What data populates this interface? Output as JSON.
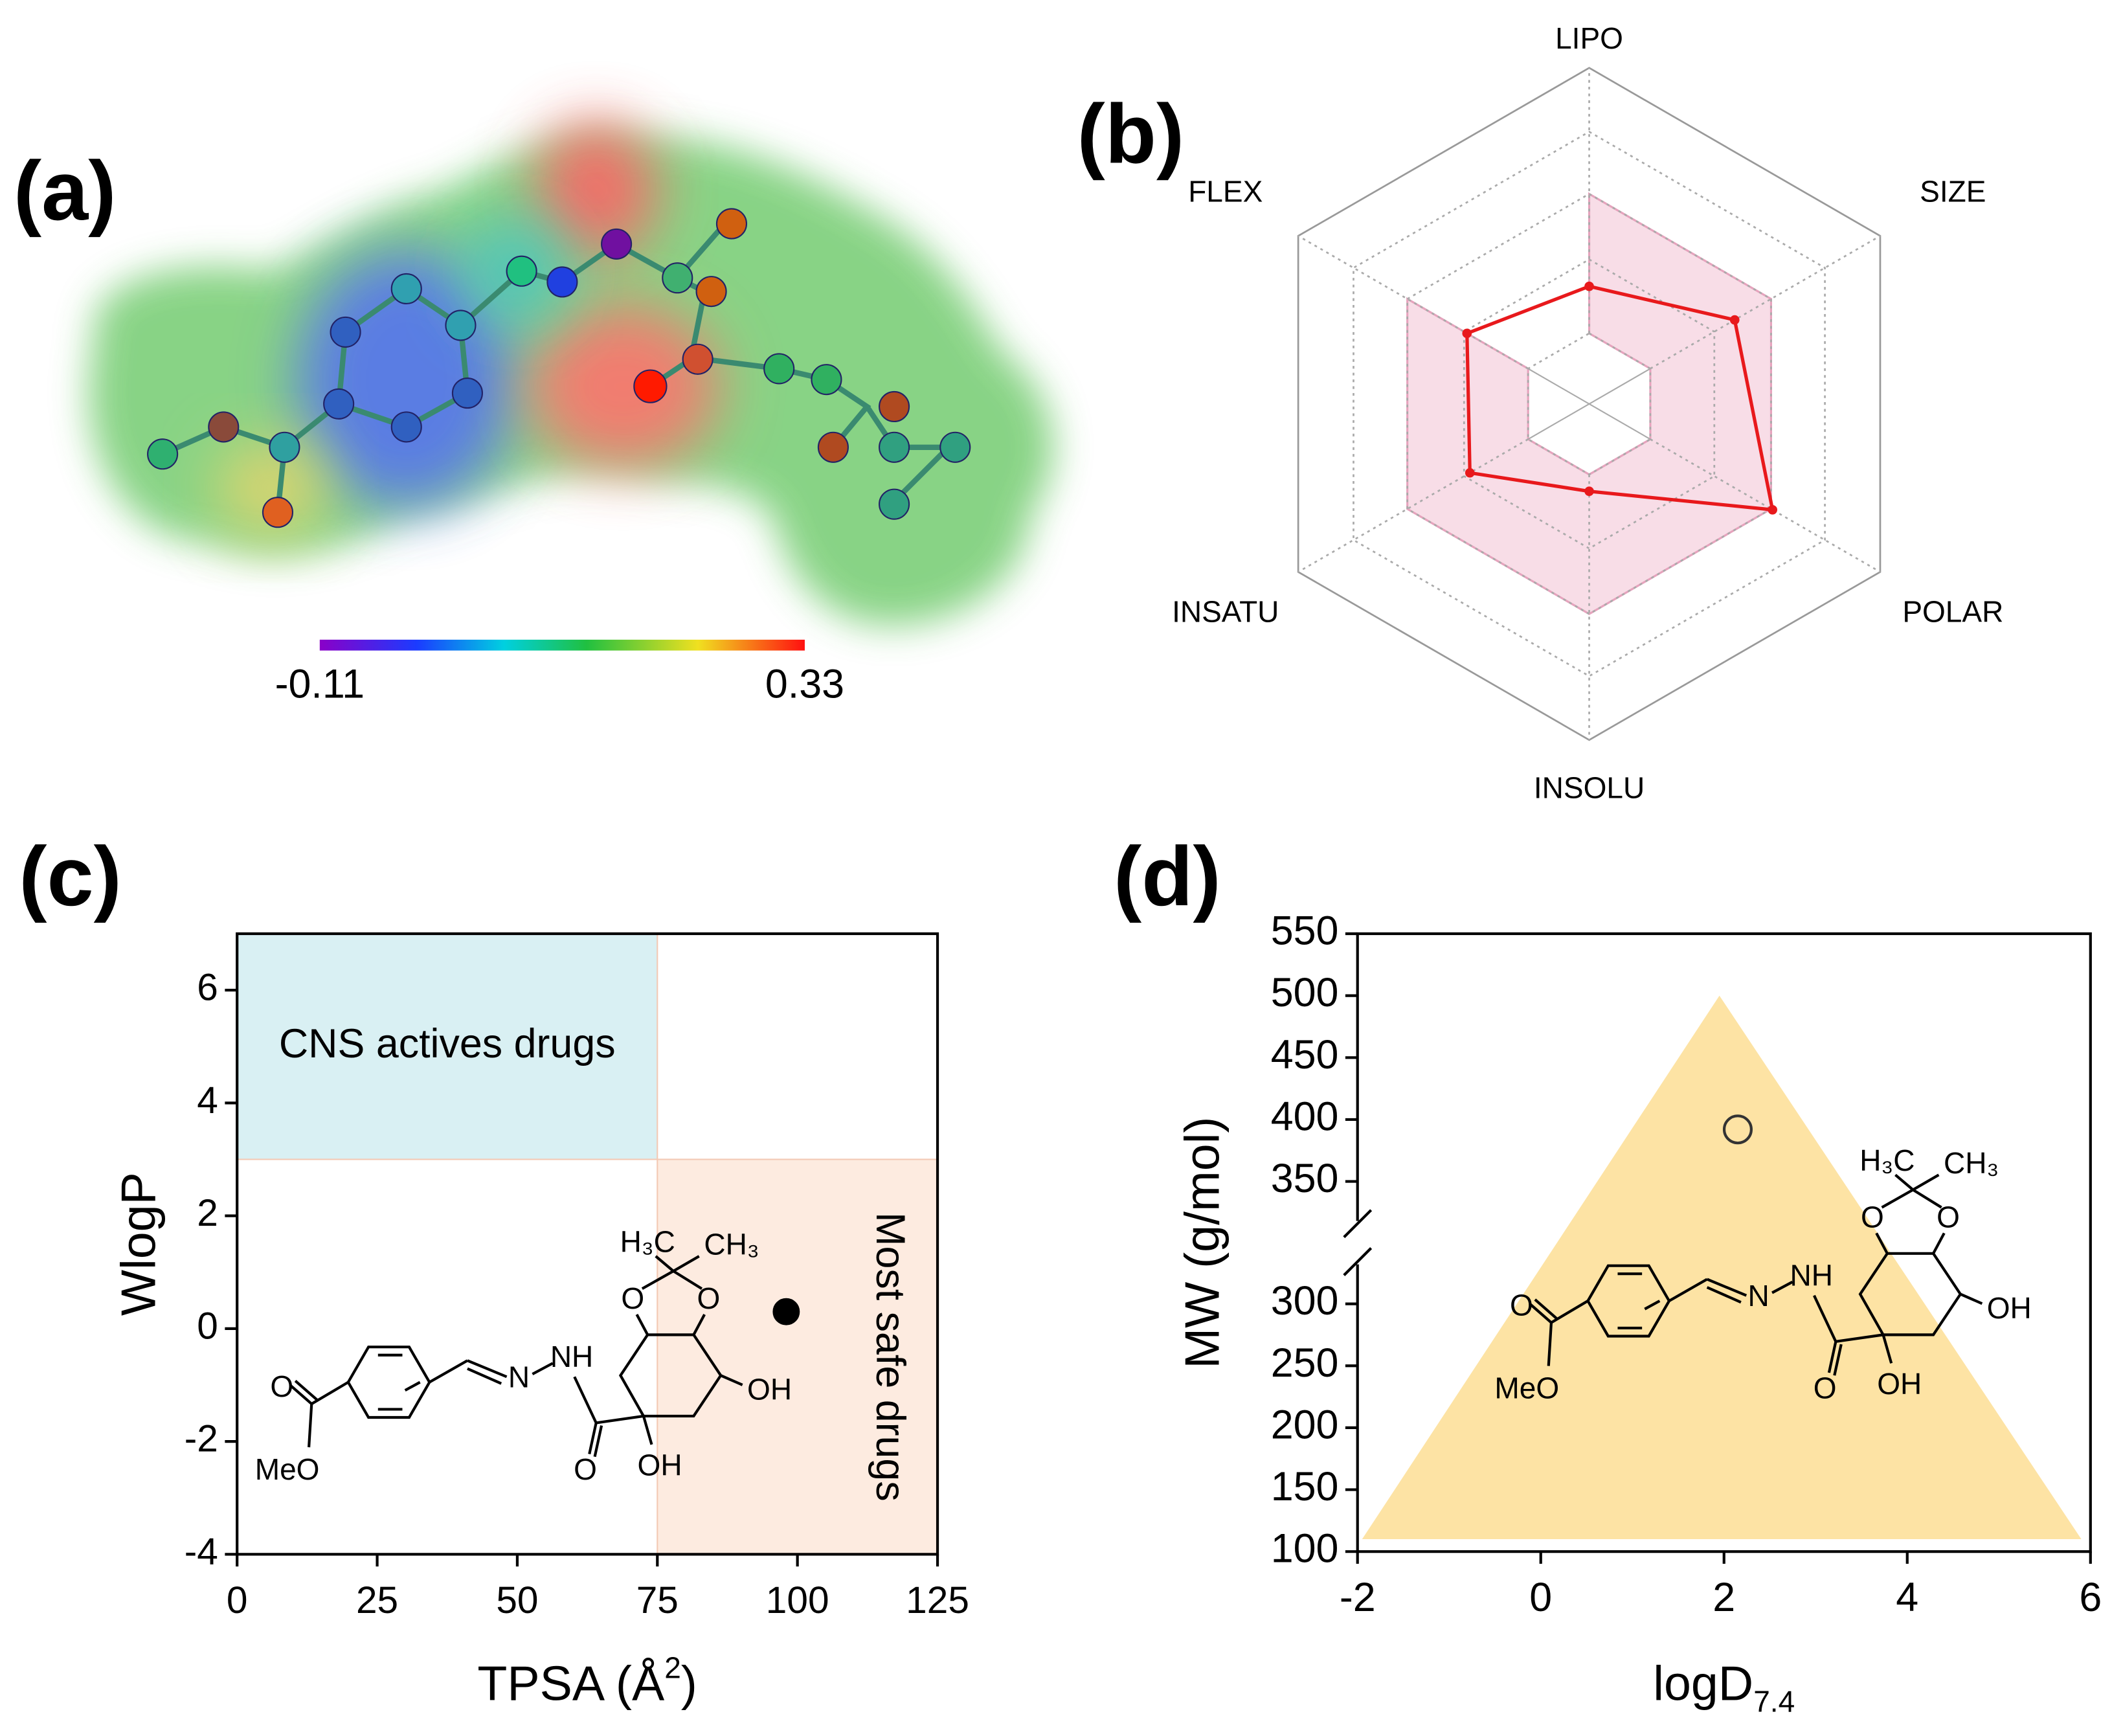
{
  "chart_data": [
    {
      "type": "colorbar",
      "panel": "(a)",
      "xlim": [
        -0.11,
        0.33
      ],
      "xticks": [
        -0.11,
        0.33
      ]
    },
    {
      "type": "radar",
      "panel": "(b)",
      "axes": [
        "LIPO",
        "SIZE",
        "POLAR",
        "INSOLU",
        "INSATU",
        "FLEX"
      ],
      "values": [
        0.35,
        0.5,
        0.63,
        0.26,
        0.41,
        0.42
      ],
      "color": "#e8191c",
      "rlim": [
        0,
        1
      ],
      "rticks": [
        0.21,
        0.43,
        0.625,
        0.81,
        1
      ],
      "shaded_range": [
        0.21,
        0.625
      ],
      "shade_color": "#f8dde7"
    },
    {
      "type": "scatter",
      "panel": "(c)",
      "xlabel": [
        "TPSA (Å",
        "2",
        ")"
      ],
      "ylabel": "WlogP",
      "xlim": [
        0,
        125
      ],
      "xticks": [
        0,
        25,
        50,
        75,
        100,
        125
      ],
      "ylim": [
        -4,
        7
      ],
      "yticks": [
        -4,
        -2,
        0,
        2,
        4,
        6
      ],
      "x": [
        98
      ],
      "values": [
        0.3
      ],
      "color": "#000000",
      "filled": true,
      "regions": [
        {
          "label": "CNS actives drugs",
          "x": [
            0,
            75
          ],
          "y": [
            3,
            7
          ],
          "color": "#d9f0f3"
        },
        {
          "label": "Most safe drugs",
          "x": [
            75,
            125
          ],
          "y": [
            -4,
            3
          ],
          "color": "#fdebe0"
        }
      ],
      "structure_labels": [
        "H₃C",
        "CH₃",
        "O",
        "O",
        "NH",
        "N",
        "OH",
        "O",
        "OH",
        "O",
        "MeO"
      ]
    },
    {
      "type": "scatter",
      "panel": "(d)",
      "xlabel": [
        "logD",
        "7.4"
      ],
      "ylabel": "MW (g/mol)",
      "xlim": [
        -2,
        6
      ],
      "xticks": [
        -2,
        0,
        2,
        4,
        6
      ],
      "ylim": [
        100,
        550
      ],
      "ybreak": [
        310,
        340
      ],
      "yticks": [
        100,
        150,
        200,
        250,
        300,
        350,
        400,
        450,
        500,
        550
      ],
      "x": [
        2.15
      ],
      "values": [
        392
      ],
      "color": "#333333",
      "filled": false,
      "regions": [
        {
          "polygon_x": [
            -1.95,
            1.95,
            5.9
          ],
          "polygon_y": [
            110,
            500,
            110
          ],
          "color": "#fde3a4"
        }
      ],
      "structure_labels": [
        "H₃C",
        "CH₃",
        "O",
        "O",
        "NH",
        "N",
        "OH",
        "O",
        "OH",
        "O",
        "MeO"
      ]
    }
  ]
}
